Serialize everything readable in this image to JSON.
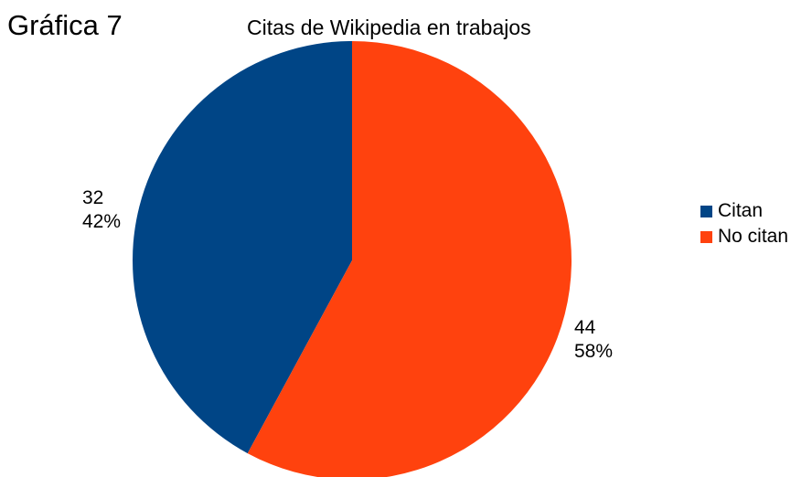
{
  "heading": "Gráfica 7",
  "chart_data": {
    "type": "pie",
    "title": "Citas de Wikipedia en trabajos",
    "categories": [
      "Citan",
      "No citan"
    ],
    "values": [
      32,
      44
    ],
    "percentages": [
      "42%",
      "58%"
    ],
    "colors": [
      "#004586",
      "#ff420e"
    ],
    "legend_position": "right",
    "start_angle_deg": 0,
    "direction": "counterclockwise"
  }
}
